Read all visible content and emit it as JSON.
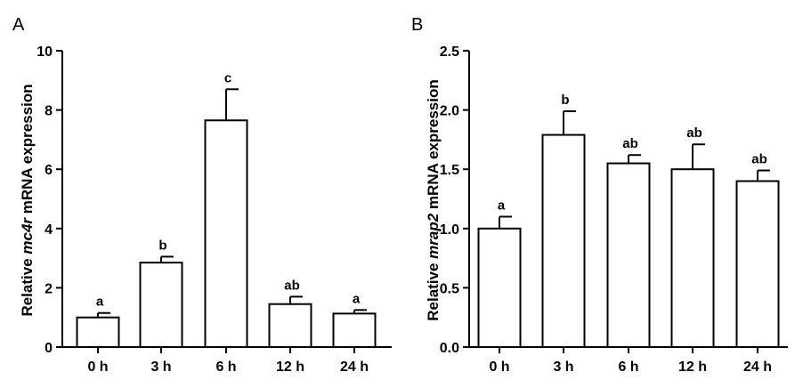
{
  "chart_data": [
    {
      "type": "bar",
      "panel_label": "A",
      "categories": [
        "0 h",
        "3 h",
        "6 h",
        "12 h",
        "24 h"
      ],
      "values": [
        1.0,
        2.85,
        7.65,
        1.45,
        1.13
      ],
      "errors": [
        0.15,
        0.2,
        1.05,
        0.25,
        0.12
      ],
      "significance": [
        "a",
        "b",
        "c",
        "ab",
        "a"
      ],
      "ylabel_prefix": "Relative ",
      "ylabel_gene": "mc4r",
      "ylabel_suffix": " mRNA expression",
      "ylim": [
        0,
        10
      ],
      "yticks": [
        0,
        2,
        4,
        6,
        8,
        10
      ],
      "ytick_labels": [
        "0",
        "2",
        "4",
        "6",
        "8",
        "10"
      ],
      "bar_fill": "#ffffff",
      "bar_stroke": "#000000"
    },
    {
      "type": "bar",
      "panel_label": "B",
      "categories": [
        "0 h",
        "3 h",
        "6 h",
        "12 h",
        "24 h"
      ],
      "values": [
        1.0,
        1.79,
        1.55,
        1.5,
        1.4
      ],
      "errors": [
        0.1,
        0.2,
        0.07,
        0.21,
        0.09
      ],
      "significance": [
        "a",
        "b",
        "ab",
        "ab",
        "ab"
      ],
      "ylabel_prefix": "Relative ",
      "ylabel_gene": "mrap2",
      "ylabel_suffix": " mRNA expression",
      "ylim": [
        0,
        2.5
      ],
      "yticks": [
        0,
        0.5,
        1.0,
        1.5,
        2.0,
        2.5
      ],
      "ytick_labels": [
        "0.0",
        "0.5",
        "1.0",
        "1.5",
        "2.0",
        "2.5"
      ],
      "bar_fill": "#ffffff",
      "bar_stroke": "#000000"
    }
  ]
}
